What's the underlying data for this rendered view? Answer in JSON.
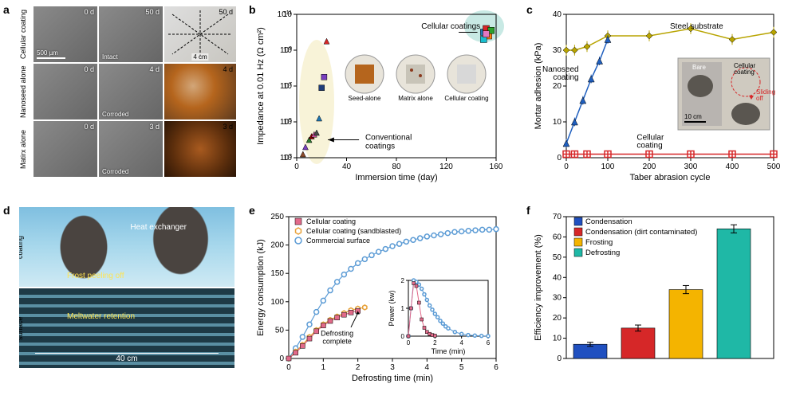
{
  "panels": {
    "a": {
      "letter": "a",
      "rows": [
        {
          "label": "Cellular\ncoating",
          "left": "0 d",
          "mid": "50 d",
          "mid_note": "Intact",
          "right": "50 d",
          "right_type": "plate"
        },
        {
          "label": "Nanoseed\nalone",
          "left": "0 d",
          "mid": "4 d",
          "mid_note": "Corroded",
          "right": "4 d",
          "right_type": "rust"
        },
        {
          "label": "Matirx\nalone",
          "left": "0 d",
          "mid": "3 d",
          "mid_note": "Corroded",
          "right": "3 d",
          "right_type": "heavyrust"
        }
      ],
      "scale_text": "500 µm",
      "dim_text": "4 cm"
    },
    "b": {
      "letter": "b",
      "xlabel": "Immersion time (day)",
      "ylabel": "Impedance at 0.01 Hz (Ω cm²)",
      "xlim": [
        0,
        160
      ],
      "xtick_step": 40,
      "ylim_log": [
        3,
        11
      ],
      "ytick_step": 2,
      "annot_cellular": "Cellular coatings",
      "annot_conv": "Conventional\ncoatings",
      "insets": [
        "Seed-alone",
        "Matrix alone",
        "Cellular coating"
      ],
      "conv_points": [
        {
          "x": 5,
          "y": 3.2,
          "c": "#8b4a2b",
          "m": "tri"
        },
        {
          "x": 7,
          "y": 3.6,
          "c": "#7a3fbf",
          "m": "tri"
        },
        {
          "x": 10,
          "y": 4.0,
          "c": "#2e7d32",
          "m": "tri"
        },
        {
          "x": 12,
          "y": 4.2,
          "c": "#8b0000",
          "m": "tri"
        },
        {
          "x": 14,
          "y": 4.3,
          "c": "#c94f9c",
          "m": "tri"
        },
        {
          "x": 16,
          "y": 4.4,
          "c": "#4a4a4a",
          "m": "tri"
        },
        {
          "x": 18,
          "y": 5.2,
          "c": "#1f77b4",
          "m": "tri"
        },
        {
          "x": 20,
          "y": 6.9,
          "c": "#1f3d7a",
          "m": "sq"
        },
        {
          "x": 22,
          "y": 7.5,
          "c": "#7a3fbf",
          "m": "sq"
        },
        {
          "x": 24,
          "y": 9.5,
          "c": "#d62728",
          "m": "tri"
        }
      ],
      "cell_points": [
        {
          "x": 150,
          "y": 10.0,
          "c": "#1f77b4",
          "m": "sq"
        },
        {
          "x": 152,
          "y": 10.2,
          "c": "#d62728",
          "m": "sq"
        },
        {
          "x": 154,
          "y": 9.8,
          "c": "#ff7f0e",
          "m": "sq"
        },
        {
          "x": 156,
          "y": 10.1,
          "c": "#2ca02c",
          "m": "sq"
        },
        {
          "x": 150,
          "y": 9.6,
          "c": "#17becf",
          "m": "sq"
        },
        {
          "x": 152,
          "y": 9.9,
          "c": "#e377c2",
          "m": "sq"
        }
      ],
      "blob_conv_color": "#f5eec7",
      "blob_cell_color": "#b0e0d8"
    },
    "c": {
      "letter": "c",
      "xlabel": "Taber abrasion cycle",
      "ylabel": "Mortar adhesion (kPa)",
      "xlim": [
        0,
        500
      ],
      "xtick_step": 100,
      "ylim": [
        0,
        40
      ],
      "ytick_step": 10,
      "series": {
        "steel": {
          "label": "Steel substrate",
          "color": "#b8a400",
          "marker": "diamond",
          "pts": [
            [
              0,
              30
            ],
            [
              20,
              30
            ],
            [
              50,
              31
            ],
            [
              100,
              34
            ],
            [
              200,
              34
            ],
            [
              300,
              36
            ],
            [
              400,
              33
            ],
            [
              500,
              35
            ]
          ],
          "err": 1.5
        },
        "nanoseed": {
          "label": "Nanoseed\ncoating",
          "color": "#1f5fbf",
          "marker": "tri",
          "pts": [
            [
              0,
              4
            ],
            [
              20,
              10
            ],
            [
              40,
              16
            ],
            [
              60,
              22
            ],
            [
              80,
              27
            ],
            [
              100,
              33
            ]
          ],
          "err": 1.2
        },
        "cellular": {
          "label": "Cellular\ncoating",
          "color": "#d62728",
          "marker": "cross",
          "pts": [
            [
              0,
              1
            ],
            [
              20,
              1
            ],
            [
              50,
              1
            ],
            [
              100,
              1
            ],
            [
              200,
              1
            ],
            [
              300,
              1
            ],
            [
              400,
              1
            ],
            [
              500,
              1
            ]
          ],
          "err": 0.5
        }
      },
      "inset_scale": "10 cm",
      "inset_labels": {
        "bare": "Bare",
        "cell": "Cellular\ncoating",
        "slide": "Sliding\noff"
      }
    },
    "d": {
      "letter": "d",
      "rows": [
        {
          "label": "Cellular\ncoating",
          "caption1": "Heat exchanger",
          "cap1_color": "#ffffff",
          "caption2": "Frost peeling off",
          "cap2_color": "#ffe450"
        },
        {
          "label": "Commercial\nsurface",
          "caption1": "Meltwater retention",
          "cap1_color": "#ffe450",
          "caption2": "40 cm",
          "cap2_color": "#ffffff"
        }
      ]
    },
    "e": {
      "letter": "e",
      "xlabel": "Defrosting time (min)",
      "ylabel": "Energy consumption (kJ)",
      "xlim": [
        0,
        6
      ],
      "xtick_step": 1,
      "ylim": [
        0,
        250
      ],
      "ytick_step": 50,
      "legend": [
        {
          "label": "Cellular coating",
          "color": "#e26a8a",
          "marker": "sq"
        },
        {
          "label": "Cellular coating (sandblasted)",
          "color": "#e8a23a",
          "marker": "hex"
        },
        {
          "label": "Commercial surface",
          "color": "#5b9bd5",
          "marker": "circ"
        }
      ],
      "cellular": [
        [
          0,
          0
        ],
        [
          0.2,
          10
        ],
        [
          0.4,
          22
        ],
        [
          0.6,
          35
        ],
        [
          0.8,
          48
        ],
        [
          1.0,
          58
        ],
        [
          1.2,
          66
        ],
        [
          1.4,
          72
        ],
        [
          1.6,
          77
        ],
        [
          1.8,
          81
        ],
        [
          2.0,
          84
        ]
      ],
      "sand": [
        [
          0,
          0
        ],
        [
          0.2,
          12
        ],
        [
          0.4,
          24
        ],
        [
          0.6,
          38
        ],
        [
          0.8,
          50
        ],
        [
          1.0,
          60
        ],
        [
          1.2,
          68
        ],
        [
          1.4,
          74
        ],
        [
          1.6,
          80
        ],
        [
          1.8,
          85
        ],
        [
          2.0,
          88
        ],
        [
          2.2,
          90
        ]
      ],
      "comm": [
        [
          0,
          0
        ],
        [
          0.2,
          18
        ],
        [
          0.4,
          38
        ],
        [
          0.6,
          60
        ],
        [
          0.8,
          82
        ],
        [
          1.0,
          102
        ],
        [
          1.2,
          120
        ],
        [
          1.4,
          135
        ],
        [
          1.6,
          148
        ],
        [
          1.8,
          158
        ],
        [
          2.0,
          168
        ],
        [
          2.2,
          175
        ],
        [
          2.4,
          182
        ],
        [
          2.6,
          188
        ],
        [
          2.8,
          193
        ],
        [
          3.0,
          198
        ],
        [
          3.2,
          202
        ],
        [
          3.4,
          206
        ],
        [
          3.6,
          209
        ],
        [
          3.8,
          212
        ],
        [
          4.0,
          215
        ],
        [
          4.2,
          217
        ],
        [
          4.4,
          219
        ],
        [
          4.6,
          221
        ],
        [
          4.8,
          223
        ],
        [
          5.0,
          224
        ],
        [
          5.2,
          225
        ],
        [
          5.4,
          226
        ],
        [
          5.6,
          227
        ],
        [
          5.8,
          227
        ],
        [
          6.0,
          228
        ]
      ],
      "annot": "Defrosting\ncomplete",
      "inset": {
        "xlabel": "Time (min)",
        "ylabel": "Power (kw)",
        "xlim": [
          0,
          6
        ],
        "xtick_step": 2,
        "ylim": [
          0,
          2
        ],
        "ytick_step": 1,
        "cellular": [
          [
            0,
            0
          ],
          [
            0.2,
            1.0
          ],
          [
            0.4,
            1.9
          ],
          [
            0.6,
            1.8
          ],
          [
            0.8,
            1.2
          ],
          [
            1.0,
            0.6
          ],
          [
            1.2,
            0.3
          ],
          [
            1.4,
            0.15
          ],
          [
            1.6,
            0.08
          ],
          [
            1.8,
            0.04
          ],
          [
            2.0,
            0.02
          ]
        ],
        "comm": [
          [
            0,
            0
          ],
          [
            0.2,
            1.0
          ],
          [
            0.4,
            2.0
          ],
          [
            0.6,
            1.95
          ],
          [
            0.8,
            1.85
          ],
          [
            1.0,
            1.7
          ],
          [
            1.2,
            1.5
          ],
          [
            1.4,
            1.3
          ],
          [
            1.6,
            1.1
          ],
          [
            1.8,
            0.95
          ],
          [
            2.0,
            0.8
          ],
          [
            2.2,
            0.68
          ],
          [
            2.4,
            0.55
          ],
          [
            2.6,
            0.45
          ],
          [
            2.8,
            0.35
          ],
          [
            3.0,
            0.28
          ],
          [
            3.5,
            0.15
          ],
          [
            4.0,
            0.08
          ],
          [
            4.5,
            0.04
          ],
          [
            5.0,
            0.02
          ],
          [
            5.5,
            0.01
          ],
          [
            6.0,
            0.005
          ]
        ]
      }
    },
    "f": {
      "letter": "f",
      "xlabel": "",
      "ylabel": "Efficiency improvement (%)",
      "ylim": [
        0,
        70
      ],
      "ytick_step": 10,
      "bars": [
        {
          "label": "Condensation",
          "value": 7,
          "err": 1,
          "color": "#2050c0"
        },
        {
          "label": "Condensation (dirt contaminated)",
          "value": 15,
          "err": 1.5,
          "color": "#d62728"
        },
        {
          "label": "Frosting",
          "value": 34,
          "err": 2,
          "color": "#f4b400"
        },
        {
          "label": "Defrosting",
          "value": 64,
          "err": 2,
          "color": "#1fb8a6"
        }
      ]
    }
  }
}
